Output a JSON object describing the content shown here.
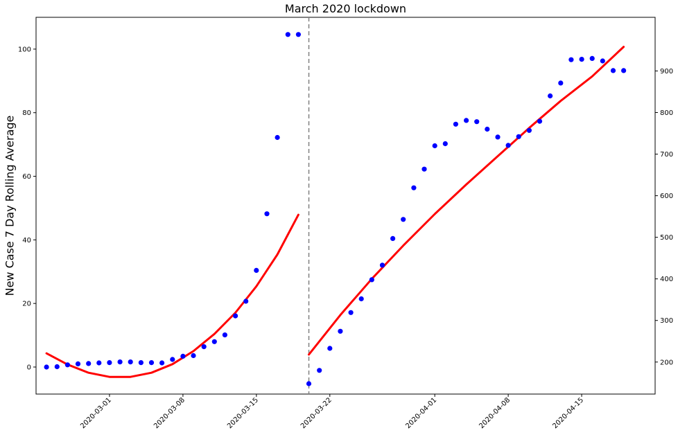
{
  "chart_data": {
    "type": "scatter",
    "title": "March 2020 lockdown",
    "ylabel": "New Case 7 Day Rolling Average",
    "ylabel_right": "",
    "grid": false,
    "vertical_line": {
      "x": "2020-03-20",
      "style": "dashed",
      "color": "#808080"
    },
    "x_range": [
      "2020-02-23",
      "2020-04-22"
    ],
    "x_ticks": [
      "2020-03-01",
      "2020-03-08",
      "2020-03-15",
      "2020-03-22",
      "2020-04-01",
      "2020-04-08",
      "2020-04-15"
    ],
    "left_axis": {
      "ylim": [
        -8.5,
        110
      ],
      "ticks": [
        0,
        20,
        40,
        60,
        80,
        100
      ]
    },
    "right_axis": {
      "ylim": [
        123,
        1029
      ],
      "ticks": [
        200,
        300,
        400,
        500,
        600,
        700,
        800,
        900
      ]
    },
    "series": [
      {
        "axis": "left",
        "kind": "scatter",
        "color": "#0000ff",
        "x": [
          "2020-02-24",
          "2020-02-25",
          "2020-02-26",
          "2020-02-27",
          "2020-02-28",
          "2020-02-29",
          "2020-03-01",
          "2020-03-02",
          "2020-03-03",
          "2020-03-04",
          "2020-03-05",
          "2020-03-06",
          "2020-03-07",
          "2020-03-08",
          "2020-03-09",
          "2020-03-10",
          "2020-03-11",
          "2020-03-12",
          "2020-03-13",
          "2020-03-14",
          "2020-03-15",
          "2020-03-16",
          "2020-03-17",
          "2020-03-18",
          "2020-03-19"
        ],
        "y": [
          0.0,
          0.1,
          0.7,
          1.0,
          1.1,
          1.3,
          1.4,
          1.6,
          1.6,
          1.4,
          1.4,
          1.3,
          2.4,
          3.4,
          3.6,
          6.4,
          8.0,
          10.1,
          16.1,
          20.7,
          30.4,
          48.2,
          72.2,
          104.6,
          104.6
        ]
      },
      {
        "axis": "left",
        "kind": "line",
        "color": "#ff0000",
        "x": [
          "2020-02-24",
          "2020-02-26",
          "2020-02-28",
          "2020-03-01",
          "2020-03-03",
          "2020-03-05",
          "2020-03-07",
          "2020-03-09",
          "2020-03-11",
          "2020-03-13",
          "2020-03-15",
          "2020-03-17",
          "2020-03-19"
        ],
        "y": [
          4.3,
          0.8,
          -1.8,
          -3.1,
          -3.1,
          -1.8,
          0.9,
          5.0,
          10.4,
          17.1,
          25.4,
          35.4,
          47.9
        ]
      },
      {
        "axis": "right",
        "kind": "scatter",
        "color": "#0000ff",
        "x": [
          "2020-03-20",
          "2020-03-21",
          "2020-03-22",
          "2020-03-23",
          "2020-03-24",
          "2020-03-25",
          "2020-03-26",
          "2020-03-27",
          "2020-03-28",
          "2020-03-29",
          "2020-03-30",
          "2020-03-31",
          "2020-04-01",
          "2020-04-02",
          "2020-04-03",
          "2020-04-04",
          "2020-04-05",
          "2020-04-06",
          "2020-04-07",
          "2020-04-08",
          "2020-04-09",
          "2020-04-10",
          "2020-04-11",
          "2020-04-12",
          "2020-04-13",
          "2020-04-14",
          "2020-04-15",
          "2020-04-16",
          "2020-04-17",
          "2020-04-18",
          "2020-04-19"
        ],
        "y": [
          148,
          180,
          233,
          274,
          319,
          352,
          398,
          433,
          497,
          543,
          619,
          664,
          720,
          725,
          772,
          781,
          778,
          760,
          741,
          721,
          742,
          757,
          779,
          840,
          871,
          927,
          928,
          930,
          924,
          901,
          901
        ]
      },
      {
        "axis": "right",
        "kind": "line",
        "color": "#ff0000",
        "x": [
          "2020-03-20",
          "2020-03-23",
          "2020-03-26",
          "2020-03-29",
          "2020-04-01",
          "2020-04-04",
          "2020-04-07",
          "2020-04-10",
          "2020-04-13",
          "2020-04-16",
          "2020-04-19"
        ],
        "y": [
          218,
          313,
          400,
          480,
          556,
          627,
          695,
          763,
          828,
          887,
          958
        ]
      }
    ]
  }
}
